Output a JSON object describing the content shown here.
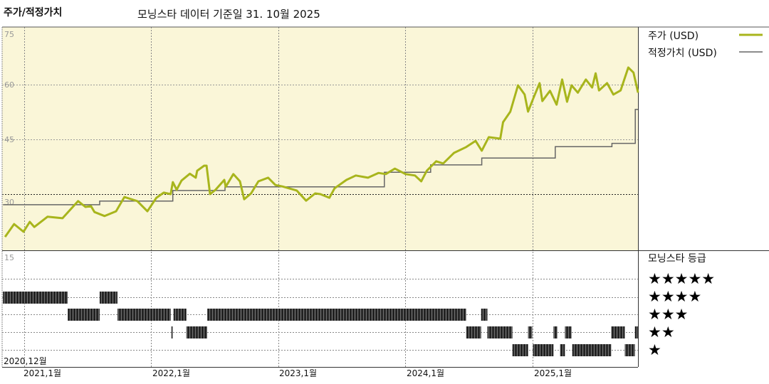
{
  "header": {
    "title": "주가/적정가치",
    "subtitle": "모닝스타 데이터 기준일 31. 10월 2025"
  },
  "colors": {
    "price": "#a8b51c",
    "fair_value": "#666666",
    "plot_background": "#faf6d8",
    "rating_bar": "#3a3a3a"
  },
  "chart_data": [
    {
      "type": "line",
      "title": "주가/적정가치",
      "ylim": [
        15,
        75
      ],
      "y_ticks": [
        "75",
        "60",
        "45",
        "30"
      ],
      "x_ticks": [
        "2020,12월",
        "2021,1월",
        "2022,1월",
        "2023,1월",
        "2024,1월",
        "2025,1월"
      ],
      "xlim": [
        "2020-11-01",
        "2025-10-31"
      ],
      "grid": true,
      "legend_placement": "right",
      "legend": [
        "주가 (USD)",
        "적정가치 (USD)"
      ],
      "series": [
        {
          "name": "주가 (USD)",
          "style": "line",
          "points": [
            [
              "2020-11-07",
              18.3
            ],
            [
              "2020-12-03",
              21.8
            ],
            [
              "2020-12-30",
              19.7
            ],
            [
              "2021-01-17",
              22.4
            ],
            [
              "2021-01-30",
              21.0
            ],
            [
              "2021-03-09",
              23.8
            ],
            [
              "2021-04-21",
              23.4
            ],
            [
              "2021-06-05",
              28.1
            ],
            [
              "2021-06-26",
              26.5
            ],
            [
              "2021-07-12",
              26.7
            ],
            [
              "2021-07-22",
              25.1
            ],
            [
              "2021-08-20",
              24.0
            ],
            [
              "2021-09-22",
              25.3
            ],
            [
              "2021-10-16",
              29.2
            ],
            [
              "2021-11-22",
              28.1
            ],
            [
              "2021-12-21",
              25.3
            ],
            [
              "2022-01-16",
              29.0
            ],
            [
              "2022-02-06",
              30.4
            ],
            [
              "2022-02-26",
              30.0
            ],
            [
              "2022-03-04",
              33.3
            ],
            [
              "2022-03-15",
              31.2
            ],
            [
              "2022-03-29",
              33.7
            ],
            [
              "2022-04-22",
              35.6
            ],
            [
              "2022-05-09",
              34.5
            ],
            [
              "2022-05-13",
              36.4
            ],
            [
              "2022-06-02",
              37.8
            ],
            [
              "2022-06-09",
              37.8
            ],
            [
              "2022-06-19",
              30.0
            ],
            [
              "2022-07-05",
              31.2
            ],
            [
              "2022-07-30",
              33.9
            ],
            [
              "2022-08-03",
              32.0
            ],
            [
              "2022-08-25",
              35.5
            ],
            [
              "2022-09-13",
              33.5
            ],
            [
              "2022-09-25",
              28.6
            ],
            [
              "2022-10-15",
              30.2
            ],
            [
              "2022-11-05",
              33.5
            ],
            [
              "2022-12-03",
              34.5
            ],
            [
              "2022-12-24",
              32.5
            ],
            [
              "2023-01-13",
              32.1
            ],
            [
              "2023-02-23",
              31.0
            ],
            [
              "2023-03-22",
              28.2
            ],
            [
              "2023-04-17",
              30.2
            ],
            [
              "2023-05-02",
              30.0
            ],
            [
              "2023-05-28",
              29.0
            ],
            [
              "2023-06-12",
              31.6
            ],
            [
              "2023-07-16",
              33.9
            ],
            [
              "2023-08-12",
              35.1
            ],
            [
              "2023-09-16",
              34.5
            ],
            [
              "2023-10-16",
              35.8
            ],
            [
              "2023-11-06",
              35.5
            ],
            [
              "2023-12-02",
              37.0
            ],
            [
              "2024-01-02",
              35.5
            ],
            [
              "2024-01-29",
              35.1
            ],
            [
              "2024-02-16",
              33.5
            ],
            [
              "2024-03-03",
              36.4
            ],
            [
              "2024-03-30",
              39.0
            ],
            [
              "2024-04-19",
              38.4
            ],
            [
              "2024-05-20",
              41.3
            ],
            [
              "2024-06-24",
              42.9
            ],
            [
              "2024-07-21",
              44.6
            ],
            [
              "2024-08-08",
              41.9
            ],
            [
              "2024-08-28",
              45.6
            ],
            [
              "2024-09-30",
              45.2
            ],
            [
              "2024-10-08",
              49.7
            ],
            [
              "2024-10-29",
              52.6
            ],
            [
              "2024-11-20",
              59.8
            ],
            [
              "2024-12-09",
              57.3
            ],
            [
              "2024-12-19",
              52.6
            ],
            [
              "2025-01-04",
              56.5
            ],
            [
              "2025-01-21",
              60.4
            ],
            [
              "2025-01-29",
              55.5
            ],
            [
              "2025-02-20",
              58.3
            ],
            [
              "2025-03-11",
              54.5
            ],
            [
              "2025-03-27",
              61.4
            ],
            [
              "2025-04-10",
              55.3
            ],
            [
              "2025-04-23",
              59.8
            ],
            [
              "2025-05-11",
              57.8
            ],
            [
              "2025-06-03",
              61.4
            ],
            [
              "2025-06-21",
              59.2
            ],
            [
              "2025-07-01",
              63.1
            ],
            [
              "2025-07-11",
              58.4
            ],
            [
              "2025-08-03",
              60.4
            ],
            [
              "2025-08-21",
              57.3
            ],
            [
              "2025-09-11",
              58.4
            ],
            [
              "2025-10-03",
              64.7
            ],
            [
              "2025-10-18",
              63.3
            ],
            [
              "2025-10-31",
              57.8
            ]
          ]
        },
        {
          "name": "적정가치 (USD)",
          "style": "step",
          "points": [
            [
              "2020-11-01",
              27.1
            ],
            [
              "2021-08-06",
              28.1
            ],
            [
              "2022-03-04",
              31.0
            ],
            [
              "2022-08-01",
              32.0
            ],
            [
              "2023-11-02",
              36.0
            ],
            [
              "2024-03-14",
              38.0
            ],
            [
              "2024-08-08",
              39.9
            ],
            [
              "2025-03-07",
              43.0
            ],
            [
              "2025-08-17",
              43.9
            ],
            [
              "2025-10-23",
              53.2
            ],
            [
              "2025-10-31",
              53.2
            ]
          ]
        }
      ]
    },
    {
      "type": "timeline",
      "title": "모닝스타 등급",
      "y_tick": "15",
      "rows": [
        "★★★★★",
        "★★★★",
        "★★★",
        "★★",
        "★"
      ],
      "ratings": [
        {
          "stars": 4,
          "from": "2020-11-01",
          "to": "2021-05-06"
        },
        {
          "stars": 3,
          "from": "2021-05-06",
          "to": "2021-08-06"
        },
        {
          "stars": 4,
          "from": "2021-08-06",
          "to": "2021-09-26"
        },
        {
          "stars": 3,
          "from": "2021-09-26",
          "to": "2022-02-26"
        },
        {
          "stars": 2,
          "from": "2022-02-28",
          "to": "2022-03-04"
        },
        {
          "stars": 3,
          "from": "2022-03-06",
          "to": "2022-04-12"
        },
        {
          "stars": 2,
          "from": "2022-04-12",
          "to": "2022-06-11"
        },
        {
          "stars": 3,
          "from": "2022-06-11",
          "to": "2024-06-24"
        },
        {
          "stars": 2,
          "from": "2024-06-24",
          "to": "2024-08-06"
        },
        {
          "stars": 3,
          "from": "2024-08-06",
          "to": "2024-08-24"
        },
        {
          "stars": 2,
          "from": "2024-08-24",
          "to": "2024-11-04"
        },
        {
          "stars": 1,
          "from": "2024-11-04",
          "to": "2024-12-19"
        },
        {
          "stars": 2,
          "from": "2024-12-19",
          "to": "2024-12-31"
        },
        {
          "stars": 1,
          "from": "2025-01-02",
          "to": "2025-03-02"
        },
        {
          "stars": 2,
          "from": "2025-03-02",
          "to": "2025-03-13"
        },
        {
          "stars": 1,
          "from": "2025-03-21",
          "to": "2025-04-04"
        },
        {
          "stars": 2,
          "from": "2025-04-04",
          "to": "2025-04-23"
        },
        {
          "stars": 1,
          "from": "2025-04-25",
          "to": "2025-08-15"
        },
        {
          "stars": 2,
          "from": "2025-08-15",
          "to": "2025-09-23"
        },
        {
          "stars": 1,
          "from": "2025-09-23",
          "to": "2025-10-22"
        },
        {
          "stars": 2,
          "from": "2025-10-22",
          "to": "2025-10-31"
        }
      ]
    }
  ]
}
